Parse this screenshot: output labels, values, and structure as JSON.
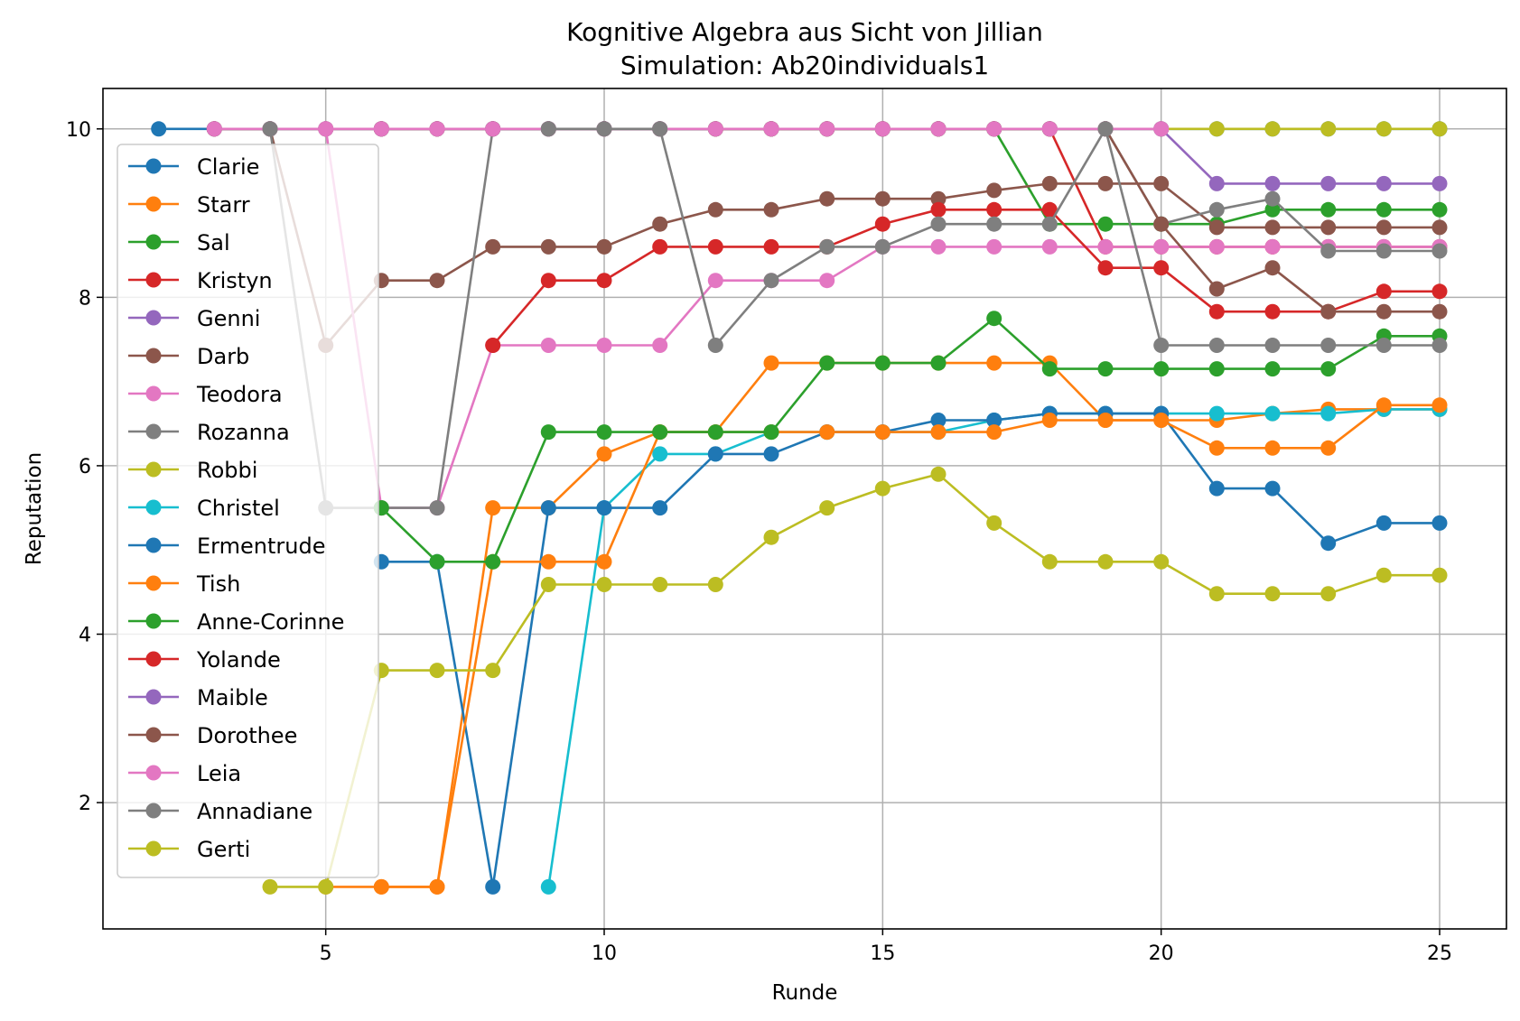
{
  "chart_data": {
    "type": "line",
    "title": "Kognitive Algebra aus Sicht von Jillian",
    "subtitle": "Simulation: Ab20individuals1",
    "xlabel": "Runde",
    "ylabel": "Reputation",
    "xlim": [
      1,
      26.2
    ],
    "ylim": [
      0.5,
      10.48
    ],
    "xticks": [
      5,
      10,
      15,
      20,
      25
    ],
    "yticks": [
      2,
      4,
      6,
      8,
      10
    ],
    "grid": true,
    "legend_position": "upper-left",
    "series": [
      {
        "name": "Clarie",
        "color": "#1f77b4",
        "x": [
          2,
          3,
          4,
          5,
          6,
          7,
          8,
          9,
          10,
          11,
          12,
          13,
          14,
          15,
          16,
          17,
          18,
          19,
          20,
          21,
          22,
          23,
          24,
          25
        ],
        "y": [
          10,
          10,
          10,
          10,
          10,
          10,
          10,
          10,
          10,
          10,
          10,
          10,
          10,
          10,
          10,
          10,
          10,
          10,
          10,
          10,
          10,
          10,
          10,
          10
        ]
      },
      {
        "name": "Starr",
        "color": "#ff7f0e",
        "x": [
          5,
          6,
          7,
          8,
          9,
          10,
          11,
          12,
          13,
          14,
          15,
          16,
          17,
          18,
          19,
          20,
          21,
          22,
          23,
          24,
          25
        ],
        "y": [
          1,
          1,
          1,
          5.5,
          5.5,
          6.14,
          6.4,
          6.4,
          7.22,
          7.22,
          7.22,
          7.22,
          7.22,
          7.22,
          6.54,
          6.54,
          6.54,
          6.62,
          6.67,
          6.67,
          6.67
        ]
      },
      {
        "name": "Sal",
        "color": "#2ca02c",
        "x": [
          3,
          4,
          5,
          6,
          7,
          8,
          9,
          10,
          11,
          12,
          13,
          14,
          15,
          16,
          17,
          18,
          19,
          20,
          21,
          22,
          23,
          24,
          25
        ],
        "y": [
          10,
          10,
          10,
          10,
          10,
          10,
          10,
          10,
          10,
          10,
          10,
          10,
          10,
          10,
          10,
          8.87,
          8.87,
          8.87,
          8.87,
          9.04,
          9.04,
          9.04,
          9.04
        ]
      },
      {
        "name": "Kristyn",
        "color": "#d62728",
        "x": [
          3,
          4,
          5,
          6,
          7,
          8,
          9,
          10,
          11,
          12,
          13,
          14,
          15,
          16,
          17,
          18,
          19,
          20,
          21,
          22,
          23,
          24,
          25
        ],
        "y": [
          10,
          10,
          10,
          10,
          10,
          10,
          10,
          10,
          10,
          10,
          10,
          10,
          10,
          10,
          10,
          10,
          8.6,
          8.6,
          8.6,
          8.6,
          8.6,
          8.6,
          8.6
        ]
      },
      {
        "name": "Genni",
        "color": "#9467bd",
        "x": [
          3,
          4,
          5,
          6,
          7,
          8,
          9,
          10,
          11,
          12,
          13,
          14,
          15,
          16,
          17,
          18,
          19,
          20,
          21,
          22,
          23,
          24,
          25
        ],
        "y": [
          10,
          10,
          10,
          10,
          10,
          10,
          10,
          10,
          10,
          10,
          10,
          10,
          10,
          10,
          10,
          10,
          10,
          10,
          9.35,
          9.35,
          9.35,
          9.35,
          9.35
        ]
      },
      {
        "name": "Darb",
        "color": "#8c564b",
        "x": [
          3,
          4,
          5,
          6,
          7,
          8,
          9,
          10,
          11,
          12,
          13,
          14,
          15,
          16,
          17,
          18,
          19,
          20,
          21,
          22,
          23,
          24,
          25
        ],
        "y": [
          10,
          10,
          7.43,
          8.2,
          8.2,
          8.6,
          8.6,
          8.6,
          8.87,
          9.04,
          9.04,
          9.17,
          9.17,
          9.17,
          9.27,
          9.35,
          9.35,
          9.35,
          8.83,
          8.83,
          8.83,
          8.83,
          8.83
        ]
      },
      {
        "name": "Teodora",
        "color": "#e377c2",
        "x": [
          3,
          4,
          5,
          6,
          7,
          8,
          9,
          10,
          11,
          12,
          13,
          14,
          15,
          16,
          17,
          18,
          19,
          20,
          21,
          22,
          23,
          24,
          25
        ],
        "y": [
          10,
          10,
          10,
          5.5,
          5.5,
          7.43,
          7.43,
          7.43,
          7.43,
          8.2,
          8.2,
          8.2,
          8.6,
          8.6,
          8.6,
          8.6,
          8.6,
          8.6,
          8.6,
          8.6,
          8.6,
          8.6,
          8.6
        ]
      },
      {
        "name": "Rozanna",
        "color": "#7f7f7f",
        "x": [
          4,
          5,
          6,
          7,
          8,
          9,
          10,
          11,
          12,
          13,
          14,
          15,
          16,
          17,
          18,
          19,
          20,
          21,
          22,
          23,
          24,
          25
        ],
        "y": [
          10,
          5.5,
          5.5,
          5.5,
          10,
          10,
          10,
          10,
          10,
          10,
          10,
          10,
          10,
          10,
          10,
          10,
          8.87,
          9.04,
          9.17,
          8.55,
          8.55,
          8.55
        ]
      },
      {
        "name": "Robbi",
        "color": "#bcbd22",
        "x": [
          12,
          13,
          14,
          15,
          16,
          17,
          18,
          19,
          20,
          21,
          22,
          23,
          24,
          25
        ],
        "y": [
          10,
          10,
          10,
          10,
          10,
          10,
          10,
          10,
          10,
          10,
          10,
          10,
          10,
          10
        ]
      },
      {
        "name": "Christel",
        "color": "#17becf",
        "x": [
          9,
          10,
          11,
          12,
          13,
          14,
          15,
          16,
          17,
          18,
          19,
          20,
          21,
          22,
          23,
          24,
          25
        ],
        "y": [
          1,
          5.5,
          6.14,
          6.14,
          6.4,
          6.4,
          6.4,
          6.4,
          6.54,
          6.62,
          6.62,
          6.62,
          6.62,
          6.62,
          6.62,
          6.67,
          6.67
        ]
      },
      {
        "name": "Ermentrude",
        "color": "#1f77b4",
        "x": [
          6,
          7,
          8,
          9,
          10,
          11,
          12,
          13,
          14,
          15,
          16,
          17,
          18,
          19,
          20,
          21,
          22,
          23,
          24,
          25
        ],
        "y": [
          4.86,
          4.86,
          1,
          5.5,
          5.5,
          5.5,
          6.14,
          6.14,
          6.4,
          6.4,
          6.54,
          6.54,
          6.62,
          6.62,
          6.62,
          5.73,
          5.73,
          5.08,
          5.32,
          5.32
        ]
      },
      {
        "name": "Tish",
        "color": "#ff7f0e",
        "x": [
          6,
          7,
          8,
          9,
          10,
          11,
          12,
          13,
          14,
          15,
          16,
          17,
          18,
          19,
          20,
          21,
          22,
          23,
          24,
          25
        ],
        "y": [
          1,
          1,
          4.86,
          4.86,
          4.86,
          6.4,
          6.4,
          6.4,
          6.4,
          6.4,
          6.4,
          6.4,
          6.54,
          6.54,
          6.54,
          6.21,
          6.21,
          6.21,
          6.72,
          6.72
        ]
      },
      {
        "name": "Anne-Corinne",
        "color": "#2ca02c",
        "x": [
          6,
          7,
          8,
          9,
          10,
          11,
          12,
          13,
          14,
          15,
          16,
          17,
          18,
          19,
          20,
          21,
          22,
          23,
          24,
          25
        ],
        "y": [
          5.5,
          4.86,
          4.86,
          6.4,
          6.4,
          6.4,
          6.4,
          6.4,
          7.22,
          7.22,
          7.22,
          7.75,
          7.15,
          7.15,
          7.15,
          7.15,
          7.15,
          7.15,
          7.54,
          7.54
        ]
      },
      {
        "name": "Yolande",
        "color": "#d62728",
        "x": [
          8,
          9,
          10,
          11,
          12,
          13,
          14,
          15,
          16,
          17,
          18,
          19,
          20,
          21,
          22,
          23,
          24,
          25
        ],
        "y": [
          7.43,
          8.2,
          8.2,
          8.6,
          8.6,
          8.6,
          8.6,
          8.87,
          9.04,
          9.04,
          9.04,
          8.35,
          8.35,
          7.83,
          7.83,
          7.83,
          8.07,
          8.07
        ]
      },
      {
        "name": "Maible",
        "color": "#9467bd",
        "x": [
          8,
          9,
          10,
          11,
          12,
          13,
          14,
          15,
          16,
          17,
          18,
          19,
          20
        ],
        "y": [
          10,
          10,
          10,
          10,
          10,
          10,
          10,
          10,
          10,
          10,
          10,
          10,
          10
        ]
      },
      {
        "name": "Dorothee",
        "color": "#8c564b",
        "x": [
          6,
          7,
          8,
          9,
          10,
          11,
          12,
          13,
          14,
          15,
          16,
          17,
          18,
          19,
          20,
          21,
          22,
          23,
          24,
          25
        ],
        "y": [
          10,
          10,
          10,
          10,
          10,
          10,
          10,
          10,
          10,
          10,
          10,
          10,
          10,
          10,
          8.87,
          8.1,
          8.35,
          7.83,
          7.83,
          7.83
        ]
      },
      {
        "name": "Leia",
        "color": "#e377c2",
        "x": [
          5,
          6,
          7,
          8,
          9,
          10,
          11,
          12,
          13,
          14,
          15,
          16,
          17,
          18,
          19,
          20
        ],
        "y": [
          10,
          10,
          10,
          10,
          10,
          10,
          10,
          10,
          10,
          10,
          10,
          10,
          10,
          10,
          10,
          10
        ]
      },
      {
        "name": "Annadiane",
        "color": "#7f7f7f",
        "x": [
          9,
          10,
          11,
          12,
          13,
          14,
          15,
          16,
          17,
          18,
          19,
          20,
          21,
          22,
          23,
          24,
          25
        ],
        "y": [
          10,
          10,
          10,
          7.43,
          8.2,
          8.6,
          8.6,
          8.87,
          8.87,
          8.87,
          10,
          7.43,
          7.43,
          7.43,
          7.43,
          7.43,
          7.43
        ]
      },
      {
        "name": "Gerti",
        "color": "#bcbd22",
        "x": [
          4,
          5,
          6,
          7,
          8,
          9,
          10,
          11,
          12,
          13,
          14,
          15,
          16,
          17,
          18,
          19,
          20,
          21,
          22,
          23,
          24,
          25
        ],
        "y": [
          1,
          1,
          3.57,
          3.57,
          3.57,
          4.59,
          4.59,
          4.59,
          4.59,
          5.15,
          5.5,
          5.73,
          5.9,
          5.32,
          4.86,
          4.86,
          4.86,
          4.48,
          4.48,
          4.48,
          4.7,
          4.7
        ]
      }
    ]
  }
}
